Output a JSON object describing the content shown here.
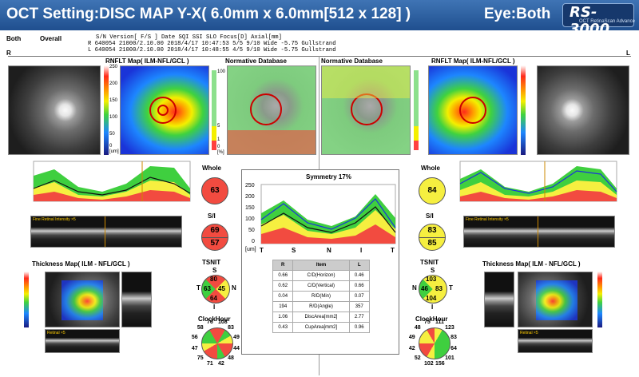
{
  "header": {
    "title": "OCT Setting:DISC MAP Y-X( 6.0mm x 6.0mm[512 x 128] )",
    "eye": "Eye:Both",
    "logo_main": "RS-3000",
    "logo_sub": "OCT RetinaScan Advance"
  },
  "info": {
    "both": "Both",
    "overall": "Overall",
    "head": "S/N      Version[ F/S ]  Date           SQI  SSI   SLO    Focus[D]  Axial[mm]",
    "r": "R  640054  21000/2.10.00   2018/4/17 10:47:53  5/5  9/10  Wide   -5.75     Gullstrand",
    "l": "L  640054  21000/2.10.00   2018/4/17 10:48:55  4/5  9/10  Wide   -5.75     Gullstrand",
    "r_marker": "R",
    "l_marker": "L"
  },
  "right": {
    "rnfl_title": "RNFLT Map( ILM-NFL/GCL )",
    "norm_title": "Normative Database",
    "scale": [
      "250",
      "200",
      "150",
      "100",
      "50",
      "0",
      "[um]"
    ],
    "norm_scale": [
      "100",
      "5",
      "1",
      "0",
      "[%]"
    ],
    "profile_unit": "[um]",
    "profile_ticks": [
      "250",
      "200",
      "150",
      "100",
      "50",
      "0"
    ],
    "profile_axis": [
      "T",
      "S",
      "N",
      "I",
      "T"
    ],
    "fine_retinal": "Fine Retinal Intensity ×5",
    "thickness_title": "Thickness Map( ILM - NFL/GCL )",
    "thick_scale": [
      "250",
      "200",
      "150",
      "100",
      "50",
      "0",
      "[um]"
    ],
    "retinal": "Retinal ×5",
    "whole": "63",
    "si_s": "69",
    "si_i": "57",
    "tsnit": {
      "s": "80",
      "t": "63",
      "n": "45",
      "i": "64",
      "label_s": "S",
      "label_t": "T",
      "label_n": "N",
      "label_i": "I"
    },
    "clock": [
      "108",
      "83",
      "49",
      "44",
      "48",
      "42",
      "71",
      "75",
      "47",
      "56",
      "58",
      "76"
    ]
  },
  "left": {
    "rnfl_title": "RNFLT Map( ILM-NFL/GCL )",
    "norm_title": "Normative Database",
    "fine_retinal": "Fine Retinal Intensity ×5",
    "thickness_title": "Thickness Map( ILM - NFL/GCL )",
    "retinal": "Retinal ×5",
    "whole": "84",
    "si_s": "83",
    "si_i": "85",
    "tsnit": {
      "s": "103",
      "t": "83",
      "n": "46",
      "i": "104",
      "label_s": "S",
      "label_t": "T",
      "label_n": "N",
      "label_i": "I"
    },
    "clock": [
      "111",
      "123",
      "83",
      "64",
      "101",
      "156",
      "102",
      "52",
      "42",
      "49",
      "48",
      "75"
    ]
  },
  "labels": {
    "whole": "Whole",
    "si": "S/I",
    "tsnit": "TSNIT",
    "clockhour": "ClockHour"
  },
  "symmetry": {
    "title": "Symmetry 17%",
    "ticks": [
      "250",
      "200",
      "150",
      "100",
      "50",
      "0"
    ],
    "axis": [
      "[um]",
      "T",
      "S",
      "N",
      "I",
      "T"
    ],
    "table_head": [
      "R",
      "Item",
      "L"
    ],
    "rows": [
      [
        "0.66",
        "C/D(Horizon)",
        "0.46"
      ],
      [
        "0.62",
        "C/D(Vertical)",
        "0.66"
      ],
      [
        "0.04",
        "R/D(Min)",
        "0.07"
      ],
      [
        "194",
        "R/D(Angle)",
        "357"
      ],
      [
        "1.06",
        "DiscArea[mm2]",
        "2.77"
      ],
      [
        "0.43",
        "CupArea[mm2]",
        "0.96"
      ]
    ]
  },
  "colors": {
    "red": "#f24b40",
    "yellow": "#f6ef40",
    "green": "#3fcf3f",
    "accent": "#2a5ea8"
  }
}
